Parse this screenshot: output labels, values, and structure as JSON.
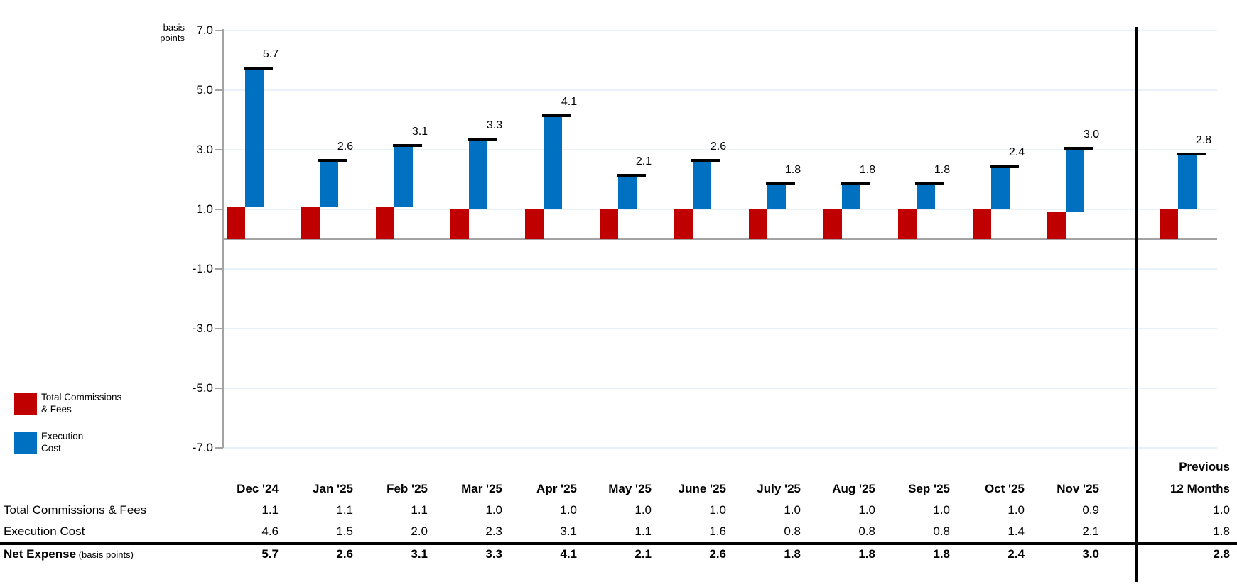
{
  "y_axis": {
    "unit_lines": [
      "basis",
      "points"
    ],
    "tick_labels": [
      "7.0",
      "5.0",
      "3.0",
      "1.0",
      "-1.0",
      "-3.0",
      "-5.0",
      "-7.0"
    ],
    "tick_values": [
      7,
      5,
      3,
      1,
      -1,
      -3,
      -5,
      -7
    ]
  },
  "legend": {
    "items": [
      {
        "name": "total-commissions-fees",
        "lines": [
          "Total Commissions",
          "& Fees"
        ],
        "color": "#C00000"
      },
      {
        "name": "execution-cost",
        "lines": [
          "Execution",
          "Cost"
        ],
        "color": "#0070C0"
      }
    ]
  },
  "chart_data": {
    "type": "bar",
    "subtype": "paired-floating-stack-with-total-cap",
    "unit": "basis points",
    "categories": [
      "Dec '24",
      "Jan '25",
      "Feb '25",
      "Mar '25",
      "Apr '25",
      "May '25",
      "June '25",
      "July '25",
      "Aug '25",
      "Sep '25",
      "Oct '25",
      "Nov '25",
      "Previous 12 Months"
    ],
    "series": [
      {
        "name": "Total Commissions & Fees",
        "color": "#C00000",
        "values": [
          1.1,
          1.1,
          1.1,
          1.0,
          1.0,
          1.0,
          1.0,
          1.0,
          1.0,
          1.0,
          1.0,
          0.9,
          1.0
        ]
      },
      {
        "name": "Execution Cost",
        "color": "#0070C0",
        "values": [
          4.6,
          1.5,
          2.0,
          2.3,
          3.1,
          1.1,
          1.6,
          0.8,
          0.8,
          0.8,
          1.4,
          2.1,
          1.8
        ]
      }
    ],
    "totals": {
      "name": "Net Expense",
      "values": [
        5.7,
        2.6,
        3.1,
        3.3,
        4.1,
        2.1,
        2.6,
        1.8,
        1.8,
        1.8,
        2.4,
        3.0,
        2.8
      ]
    },
    "total_labels": [
      "5.7",
      "2.6",
      "3.1",
      "3.3",
      "4.1",
      "2.1",
      "2.6",
      "1.8",
      "1.8",
      "1.8",
      "2.4",
      "3.0",
      "2.8"
    ],
    "ylabel": "basis points",
    "ylim": [
      -7,
      7
    ],
    "yticks": [
      7,
      5,
      3,
      1,
      -1,
      -3,
      -5,
      -7
    ],
    "grid": true,
    "legend_position": "bottom-left",
    "divider_before_category": "Previous 12 Months"
  },
  "table": {
    "column_headers": [
      "Dec '24",
      "Jan '25",
      "Feb '25",
      "Mar '25",
      "Apr '25",
      "May '25",
      "June '25",
      "July '25",
      "Aug '25",
      "Sep '25",
      "Oct '25",
      "Nov '25"
    ],
    "final_column_header_lines": [
      "Previous",
      "12 Months"
    ],
    "rows": [
      {
        "label": "Total Commissions & Fees",
        "bold": false,
        "values": [
          "1.1",
          "1.1",
          "1.1",
          "1.0",
          "1.0",
          "1.0",
          "1.0",
          "1.0",
          "1.0",
          "1.0",
          "1.0",
          "0.9"
        ],
        "final": "1.0"
      },
      {
        "label": "Execution Cost",
        "bold": false,
        "values": [
          "4.6",
          "1.5",
          "2.0",
          "2.3",
          "3.1",
          "1.1",
          "1.6",
          "0.8",
          "0.8",
          "0.8",
          "1.4",
          "2.1"
        ],
        "final": "1.8"
      },
      {
        "label": "Net Expense",
        "label_suffix": "(basis points)",
        "bold": true,
        "values": [
          "5.7",
          "2.6",
          "3.1",
          "3.3",
          "4.1",
          "2.1",
          "2.6",
          "1.8",
          "1.8",
          "1.8",
          "2.4",
          "3.0"
        ],
        "final": "2.8"
      }
    ]
  },
  "colors": {
    "fees_bar": "#C00000",
    "execution_bar": "#0070C0",
    "total_cap": "#000000",
    "axis": "#A3A3A3",
    "gridline": "#EBF1F8",
    "divider": "#000000",
    "text": "#000000",
    "background": "#FFFFFF"
  }
}
